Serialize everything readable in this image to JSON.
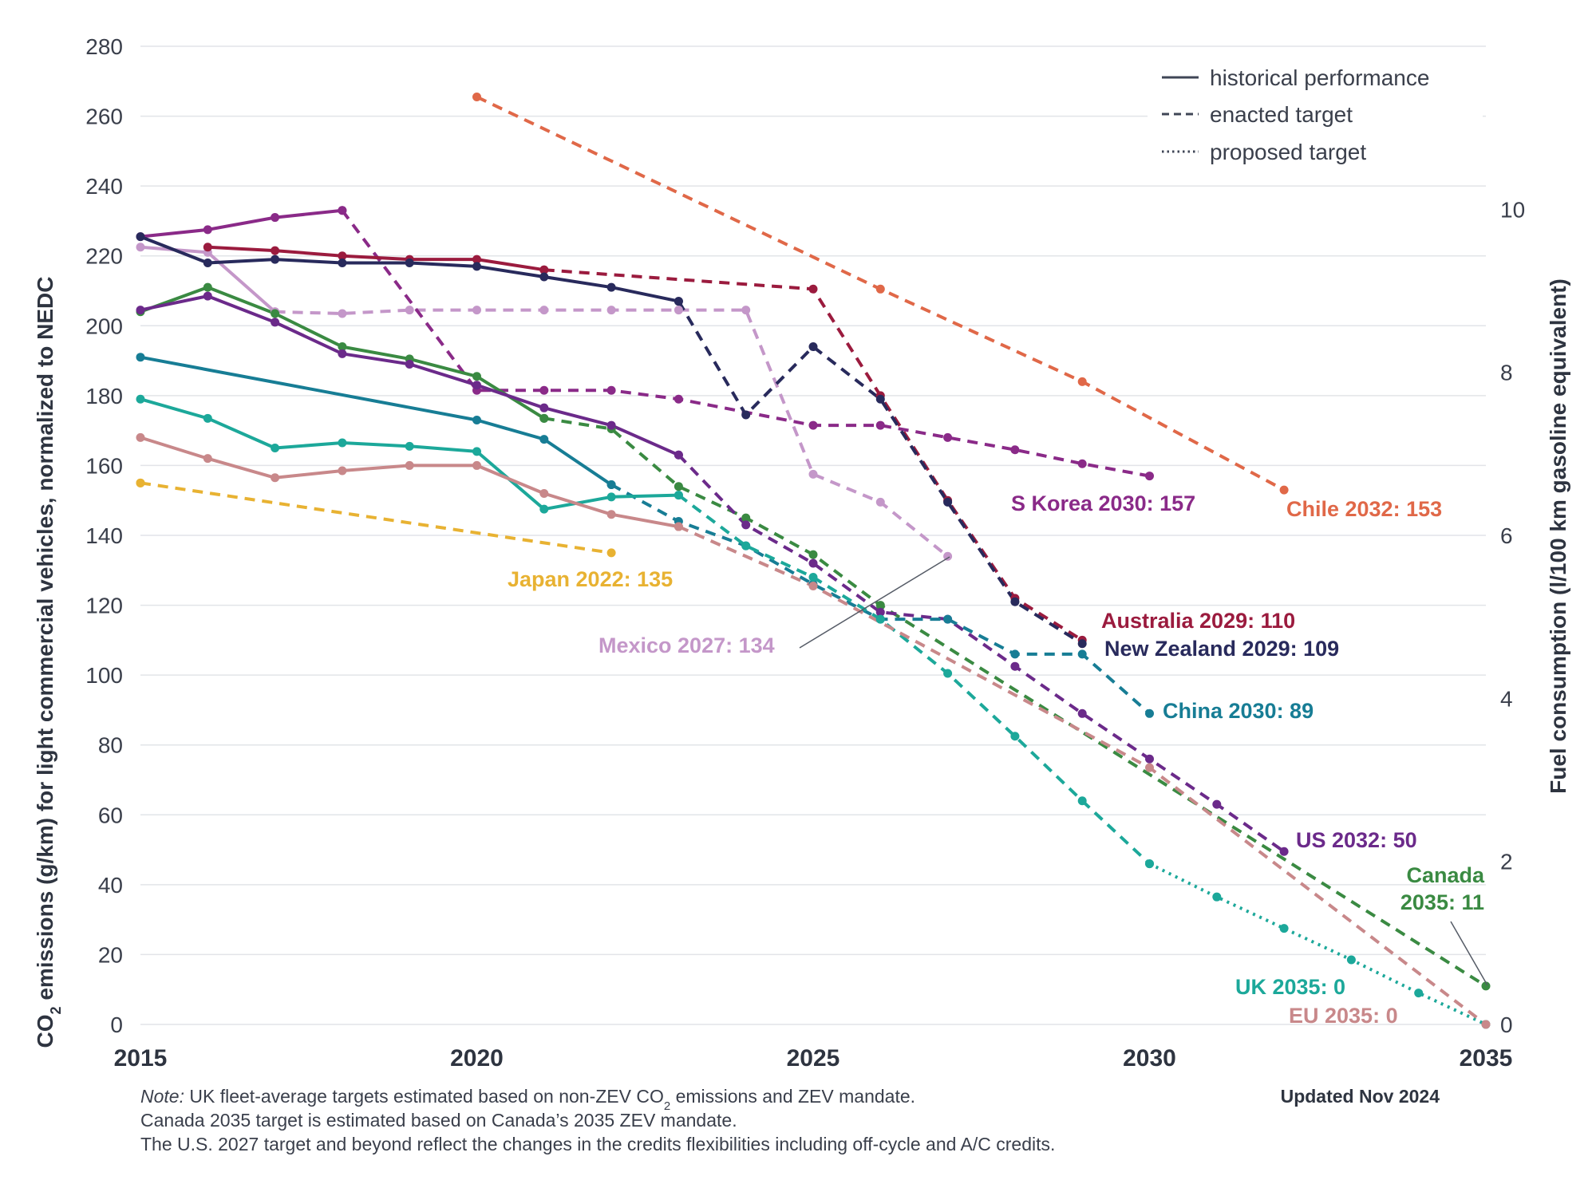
{
  "chart_data": {
    "type": "line",
    "xlim": [
      2015,
      2035
    ],
    "ylim": [
      0,
      280
    ],
    "y2lim": [
      0,
      12
    ],
    "xticks": [
      "2015",
      "2020",
      "2025",
      "2030",
      "2035"
    ],
    "yticks": [
      "0",
      "20",
      "40",
      "60",
      "80",
      "100",
      "120",
      "140",
      "160",
      "180",
      "200",
      "220",
      "240",
      "260",
      "280"
    ],
    "y2ticks": [
      "0",
      "2",
      "4",
      "6",
      "8",
      "10"
    ],
    "ylabel_parts": [
      "CO",
      "2",
      " emissions (g/km) for light commercial vehicles, normalized to NEDC"
    ],
    "y2label": "Fuel consumption (l/100 km gasoline equivalent)",
    "grid": true,
    "legend": {
      "position": "top-right",
      "items": [
        {
          "style": "solid",
          "label": "historical performance"
        },
        {
          "style": "dashed",
          "label": "enacted target"
        },
        {
          "style": "dotted",
          "label": "proposed target"
        }
      ]
    },
    "series": [
      {
        "key": "japan",
        "name": "Japan 2022: 135",
        "color": "#e8b232",
        "historical": [
          [
            2015,
            155
          ]
        ],
        "enacted": [
          [
            2015,
            155
          ],
          [
            2022,
            135
          ]
        ]
      },
      {
        "key": "chile",
        "name": "Chile 2032: 153",
        "color": "#e06848",
        "enacted": [
          [
            2020,
            265.5
          ],
          [
            2026,
            210.5
          ],
          [
            2029,
            184
          ],
          [
            2032,
            153
          ]
        ]
      },
      {
        "key": "mexico",
        "name": "Mexico 2027: 134",
        "color": "#c497c9",
        "historical": [
          [
            2015,
            222.5
          ],
          [
            2016,
            221
          ],
          [
            2017,
            204
          ]
        ],
        "enacted": [
          [
            2017,
            204
          ],
          [
            2018,
            203.5
          ],
          [
            2019,
            204.5
          ],
          [
            2020,
            204.5
          ],
          [
            2021,
            204.5
          ],
          [
            2022,
            204.5
          ],
          [
            2023,
            204.5
          ],
          [
            2024,
            204.5
          ],
          [
            2025,
            157.5
          ],
          [
            2026,
            149.5
          ],
          [
            2027,
            134
          ]
        ]
      },
      {
        "key": "skorea",
        "name": "S Korea 2030: 157",
        "color": "#8a2a88",
        "historical": [
          [
            2015,
            225.5
          ],
          [
            2016,
            227.5
          ],
          [
            2017,
            231
          ],
          [
            2018,
            233
          ]
        ],
        "enacted": [
          [
            2018,
            233
          ],
          [
            2020,
            181.5
          ],
          [
            2021,
            181.5
          ],
          [
            2022,
            181.5
          ],
          [
            2023,
            179
          ],
          [
            2025,
            171.5
          ],
          [
            2026,
            171.5
          ],
          [
            2027,
            168
          ],
          [
            2028,
            164.5
          ],
          [
            2029,
            160.5
          ],
          [
            2030,
            157
          ]
        ]
      },
      {
        "key": "australia",
        "name": "Australia 2029: 110",
        "color": "#9b1b3e",
        "historical": [
          [
            2016,
            222.5
          ],
          [
            2017,
            221.5
          ],
          [
            2018,
            220
          ],
          [
            2019,
            219
          ],
          [
            2020,
            219
          ],
          [
            2021,
            216
          ]
        ],
        "enacted": [
          [
            2021,
            216
          ],
          [
            2025,
            210.5
          ],
          [
            2026,
            180
          ],
          [
            2027,
            150
          ],
          [
            2028,
            122
          ],
          [
            2029,
            110
          ]
        ]
      },
      {
        "key": "nz",
        "name": "New Zealand 2029: 109",
        "color": "#282a5c",
        "historical": [
          [
            2015,
            225.5
          ],
          [
            2016,
            218
          ],
          [
            2017,
            219
          ],
          [
            2018,
            218
          ],
          [
            2019,
            218
          ],
          [
            2020,
            217
          ],
          [
            2021,
            214
          ],
          [
            2022,
            211
          ],
          [
            2023,
            207
          ]
        ],
        "enacted": [
          [
            2023,
            207
          ],
          [
            2024,
            174.5
          ],
          [
            2025,
            194
          ],
          [
            2026,
            179
          ],
          [
            2027,
            149.5
          ],
          [
            2028,
            121
          ],
          [
            2029,
            109
          ]
        ]
      },
      {
        "key": "canada",
        "name": "Canada 2035: 11",
        "label_lines": [
          "Canada",
          "2035: 11"
        ],
        "color": "#3a8a42",
        "historical": [
          [
            2015,
            204
          ],
          [
            2016,
            211
          ],
          [
            2017,
            203.5
          ],
          [
            2018,
            194
          ],
          [
            2019,
            190.5
          ],
          [
            2020,
            185.5
          ],
          [
            2021,
            173.5
          ]
        ],
        "enacted": [
          [
            2021,
            173.5
          ],
          [
            2022,
            170.5
          ],
          [
            2023,
            154
          ],
          [
            2024,
            145
          ],
          [
            2025,
            134.5
          ],
          [
            2026,
            120
          ],
          [
            2035,
            11
          ]
        ]
      },
      {
        "key": "us",
        "name": "US 2032: 50",
        "color": "#6b2a8a",
        "historical": [
          [
            2015,
            204.5
          ],
          [
            2016,
            208.5
          ],
          [
            2017,
            201
          ],
          [
            2018,
            192
          ],
          [
            2019,
            189
          ],
          [
            2020,
            183
          ],
          [
            2021,
            176.5
          ],
          [
            2022,
            171.5
          ],
          [
            2023,
            163
          ]
        ],
        "enacted": [
          [
            2023,
            163
          ],
          [
            2024,
            143
          ],
          [
            2025,
            132
          ],
          [
            2026,
            118
          ],
          [
            2027,
            116
          ],
          [
            2028,
            102.5
          ],
          [
            2029,
            89
          ],
          [
            2030,
            76
          ],
          [
            2031,
            63
          ],
          [
            2032,
            49.5
          ]
        ]
      },
      {
        "key": "china",
        "name": "China 2030: 89",
        "color": "#177d95",
        "historical": [
          [
            2015,
            191
          ],
          [
            2020,
            173
          ],
          [
            2021,
            167.5
          ],
          [
            2022,
            154.5
          ]
        ],
        "enacted": [
          [
            2022,
            154.5
          ],
          [
            2023,
            144
          ],
          [
            2024,
            137
          ],
          [
            2025,
            126
          ],
          [
            2026,
            116
          ],
          [
            2027,
            116
          ],
          [
            2028,
            106
          ],
          [
            2029,
            106
          ],
          [
            2030,
            89
          ]
        ]
      },
      {
        "key": "uk",
        "name": "UK 2035: 0",
        "color": "#1ca89a",
        "historical": [
          [
            2015,
            179
          ],
          [
            2016,
            173.5
          ],
          [
            2017,
            165
          ],
          [
            2018,
            166.5
          ],
          [
            2019,
            165.5
          ],
          [
            2020,
            164
          ],
          [
            2021,
            147.5
          ],
          [
            2022,
            151
          ],
          [
            2023,
            151.5
          ]
        ],
        "enacted": [
          [
            2023,
            151.5
          ],
          [
            2024,
            137
          ],
          [
            2025,
            128
          ],
          [
            2026,
            116
          ],
          [
            2027,
            100.5
          ],
          [
            2028,
            82.5
          ],
          [
            2029,
            64
          ],
          [
            2030,
            46
          ]
        ],
        "proposed": [
          [
            2030,
            46
          ],
          [
            2031,
            36.5
          ],
          [
            2032,
            27.5
          ],
          [
            2033,
            18.5
          ],
          [
            2034,
            9
          ],
          [
            2035,
            0
          ]
        ]
      },
      {
        "key": "eu",
        "name": "EU 2035: 0",
        "color": "#c8888a",
        "historical": [
          [
            2015,
            168
          ],
          [
            2016,
            162
          ],
          [
            2017,
            156.5
          ],
          [
            2018,
            158.5
          ],
          [
            2019,
            160
          ],
          [
            2020,
            160
          ],
          [
            2021,
            152
          ],
          [
            2022,
            146
          ],
          [
            2023,
            142.5
          ]
        ],
        "enacted": [
          [
            2023,
            142.5
          ],
          [
            2025,
            125.5
          ],
          [
            2030,
            73.5
          ],
          [
            2035,
            0
          ]
        ]
      }
    ]
  },
  "footer": {
    "note_prefix": "Note:",
    "note_line1_a": " UK fleet-average targets estimated based on non-ZEV CO",
    "note_line1_sub": "2",
    "note_line1_b": " emissions and ZEV mandate.",
    "note_line2": "Canada 2035 target is estimated based on Canada’s 2035 ZEV mandate.",
    "note_line3": "The U.S. 2027 target and beyond reflect the changes in the credits flexibilities including off-cycle and A/C credits.",
    "updated": "Updated Nov 2024"
  }
}
